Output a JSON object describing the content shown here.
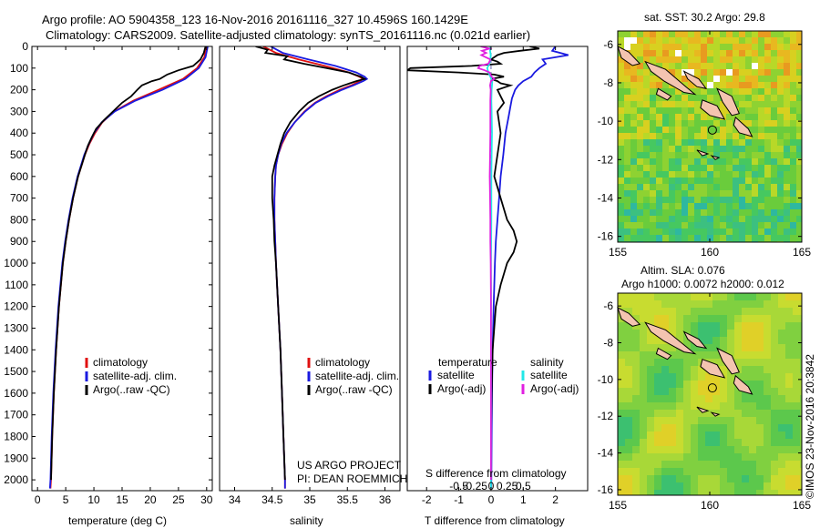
{
  "header": {
    "line1": "Argo profile: AO 5904358_123 16-Nov-2016 20161116_327 10.4596S 160.1429E",
    "line2": "Climatology: CARS2009. Satellite-adjusted climatology: synTS_20161116.nc (0.021d earlier)"
  },
  "credits": {
    "project": "US ARGO PROJECT",
    "pi": "PI: DEAN ROEMMICH",
    "imos": "©IMOS 23-Nov-2016 20:3842"
  },
  "colors": {
    "climatology": "#e01010",
    "satellite": "#1a1ae0",
    "argo": "#000000",
    "salinity_satellite": "#22e8e8",
    "salinity_argo": "#e020e0",
    "land": "#f4c4b0",
    "zero_line": "#8080c0"
  },
  "chart_data": [
    {
      "type": "line",
      "id": "temperature",
      "xlabel": "temperature (deg C)",
      "ylabel": "",
      "xlim": [
        -1,
        31
      ],
      "ylim": [
        2050,
        0
      ],
      "xticks": [
        0,
        5,
        10,
        15,
        20,
        25,
        30
      ],
      "yticks": [
        0,
        100,
        200,
        300,
        400,
        500,
        600,
        700,
        800,
        900,
        1000,
        1100,
        1200,
        1300,
        1400,
        1500,
        1600,
        1700,
        1800,
        1900,
        2000
      ],
      "legend": [
        "climatology",
        "satellite-adj. clim.",
        "Argo(..raw -QC)"
      ],
      "series": [
        {
          "name": "climatology",
          "color_key": "climatology",
          "depth": [
            0,
            50,
            100,
            150,
            200,
            250,
            300,
            350,
            400,
            450,
            500,
            600,
            700,
            800,
            900,
            1000,
            1200,
            1400,
            1600,
            1800,
            2000,
            2040
          ],
          "values": [
            29.9,
            29.6,
            28.3,
            25.8,
            21.5,
            17.0,
            13.6,
            11.5,
            10.2,
            9.2,
            8.4,
            7.2,
            6.3,
            5.6,
            5.0,
            4.5,
            3.8,
            3.3,
            2.9,
            2.6,
            2.4,
            2.3
          ]
        },
        {
          "name": "satellite-adj. clim.",
          "color_key": "satellite",
          "depth": [
            0,
            50,
            100,
            150,
            200,
            250,
            300,
            350,
            400,
            450,
            500,
            600,
            700,
            800,
            900,
            1000,
            1200,
            1400,
            1600,
            1800,
            2000,
            2040
          ],
          "values": [
            30.2,
            29.8,
            28.6,
            26.2,
            22.2,
            17.4,
            13.7,
            11.4,
            10.0,
            9.1,
            8.3,
            7.1,
            6.2,
            5.5,
            4.9,
            4.4,
            3.7,
            3.2,
            2.8,
            2.5,
            2.3,
            2.2
          ]
        },
        {
          "name": "Argo(..raw -QC)",
          "color_key": "argo",
          "depth": [
            0,
            30,
            60,
            90,
            110,
            130,
            150,
            160,
            180,
            200,
            230,
            260,
            300,
            340,
            380,
            420,
            460,
            500,
            550,
            600,
            700,
            800,
            900,
            1000,
            1200,
            1400,
            1600,
            1800,
            2000
          ],
          "values": [
            29.8,
            29.5,
            28.9,
            27.6,
            25.0,
            23.0,
            21.7,
            20.3,
            18.5,
            17.7,
            16.6,
            15.0,
            13.4,
            11.8,
            10.4,
            9.6,
            8.9,
            8.4,
            7.8,
            7.2,
            6.3,
            5.6,
            5.0,
            4.5,
            3.8,
            3.3,
            2.9,
            2.6,
            2.4
          ]
        }
      ]
    },
    {
      "type": "line",
      "id": "salinity",
      "xlabel": "salinity",
      "xlim": [
        33.8,
        36.2
      ],
      "ylim": [
        2050,
        0
      ],
      "xticks": [
        34,
        34.5,
        35,
        35.5,
        36
      ],
      "legend": [
        "climatology",
        "satellite-adj. clim.",
        "Argo(..raw -QC)"
      ],
      "series": [
        {
          "name": "climatology",
          "color_key": "climatology",
          "depth": [
            0,
            30,
            60,
            90,
            120,
            140,
            150,
            160,
            180,
            200,
            230,
            260,
            300,
            350,
            400,
            450,
            500,
            550,
            600,
            700,
            800,
            900,
            1000,
            1200,
            1400,
            1600,
            1800,
            2000,
            2040
          ],
          "values": [
            34.38,
            34.55,
            34.85,
            35.2,
            35.52,
            35.66,
            35.7,
            35.67,
            35.55,
            35.4,
            35.22,
            35.07,
            34.93,
            34.8,
            34.7,
            34.63,
            34.58,
            34.55,
            34.54,
            34.53,
            34.53,
            34.54,
            34.55,
            34.58,
            34.61,
            34.63,
            34.65,
            34.67,
            34.67
          ]
        },
        {
          "name": "satellite-adj. clim.",
          "color_key": "satellite",
          "depth": [
            0,
            30,
            60,
            90,
            120,
            140,
            150,
            160,
            180,
            200,
            230,
            260,
            300,
            350,
            400,
            450,
            500,
            550,
            600,
            700,
            800,
            900,
            1000,
            1200,
            1400,
            1600,
            1800,
            2000,
            2040
          ],
          "values": [
            34.48,
            34.64,
            34.98,
            35.34,
            35.62,
            35.73,
            35.76,
            35.71,
            35.58,
            35.43,
            35.24,
            35.08,
            34.94,
            34.8,
            34.69,
            34.62,
            34.58,
            34.55,
            34.54,
            34.53,
            34.53,
            34.54,
            34.55,
            34.58,
            34.61,
            34.63,
            34.65,
            34.67,
            34.67
          ]
        },
        {
          "name": "Argo(..raw -QC)",
          "color_key": "argo",
          "depth": [
            0,
            15,
            30,
            45,
            60,
            80,
            100,
            120,
            140,
            150,
            160,
            180,
            200,
            230,
            260,
            300,
            350,
            400,
            450,
            500,
            550,
            600,
            700,
            800,
            900,
            1000,
            1200,
            1400,
            1600,
            1800,
            2000
          ],
          "values": [
            34.28,
            34.44,
            34.41,
            34.7,
            34.66,
            34.92,
            35.22,
            35.52,
            35.68,
            35.73,
            35.62,
            35.45,
            35.3,
            35.12,
            34.98,
            34.86,
            34.74,
            34.66,
            34.61,
            34.57,
            34.53,
            34.5,
            34.5,
            34.52,
            34.53,
            34.55,
            34.58,
            34.61,
            34.63,
            34.65,
            34.67
          ]
        }
      ]
    },
    {
      "type": "line",
      "id": "differences",
      "xlabel": "T difference from climatology",
      "xlabel_top": "S difference from climatology",
      "xlim": [
        -2.6,
        3.0
      ],
      "ylim": [
        2050,
        0
      ],
      "xticks": [
        -2,
        -1,
        0,
        1,
        2
      ],
      "s_ticks": [
        -0.5,
        -0.25,
        0,
        0.25,
        0.5
      ],
      "s_ticks_labels": [
        "-0.5",
        "-0.25",
        "0",
        "0.25",
        "0.5"
      ],
      "legend_temperature_title": "temperature",
      "legend_salinity_title": "salinity",
      "legend_temperature": [
        "satellite",
        "Argo(-adj)"
      ],
      "legend_salinity": [
        "satellite",
        "Argo(-adj)"
      ],
      "series": [
        {
          "name": "temperature satellite",
          "color_key": "satellite",
          "depth": [
            0,
            20,
            40,
            60,
            80,
            100,
            120,
            140,
            160,
            180,
            200,
            240,
            280,
            320,
            400,
            500,
            600,
            700,
            800,
            900,
            1000,
            1200,
            1400,
            1600,
            1800,
            2000,
            2040
          ],
          "values": [
            2.0,
            1.9,
            2.4,
            1.6,
            1.7,
            1.5,
            1.35,
            1.25,
            1.0,
            0.85,
            0.75,
            0.65,
            0.6,
            0.55,
            0.45,
            0.38,
            0.3,
            0.25,
            0.2,
            0.15,
            0.12,
            0.08,
            0.05,
            0.03,
            0.02,
            0.01,
            0.0
          ]
        },
        {
          "name": "temperature Argo(-adj)",
          "color_key": "argo",
          "depth": [
            0,
            10,
            20,
            30,
            40,
            60,
            70,
            80,
            90,
            100,
            110,
            120,
            130,
            140,
            150,
            160,
            170,
            180,
            190,
            200,
            230,
            260,
            300,
            400,
            500,
            600,
            700,
            800,
            850,
            900,
            950,
            1000,
            1100,
            1200,
            1400,
            1600,
            1800,
            2000
          ],
          "values": [
            1.2,
            1.5,
            0.9,
            0.4,
            0.2,
            0.0,
            0.2,
            0.3,
            -0.6,
            -2.5,
            -2.6,
            -1.0,
            0.1,
            0.4,
            0.0,
            0.2,
            0.3,
            0.6,
            0.4,
            0.2,
            0.3,
            0.4,
            0.2,
            0.3,
            0.2,
            0.1,
            0.3,
            0.5,
            0.7,
            0.8,
            0.7,
            0.5,
            0.3,
            0.15,
            0.05,
            0.02,
            0.0,
            0.0
          ]
        },
        {
          "name": "salinity satellite",
          "color_key": "salinity_satellite",
          "depth": [
            0,
            20,
            40,
            60,
            80,
            100,
            120,
            140,
            160,
            180,
            200,
            250,
            300,
            400,
            500,
            600,
            800,
            1000,
            1200,
            1400,
            1600,
            1800,
            2000,
            2040
          ],
          "values": [
            -0.02,
            -0.03,
            -0.01,
            -0.02,
            -0.05,
            -0.12,
            -0.08,
            -0.02,
            0.04,
            0.03,
            0.02,
            0.01,
            0.02,
            0.03,
            0.02,
            0.01,
            0.01,
            0.0,
            0.0,
            0.0,
            0.0,
            0.0,
            0.0,
            0.0
          ]
        },
        {
          "name": "salinity Argo(-adj)",
          "color_key": "salinity_argo",
          "depth": [
            0,
            10,
            20,
            30,
            40,
            60,
            70,
            80,
            90,
            100,
            110,
            120,
            140,
            150,
            160,
            180,
            200,
            250,
            300,
            400,
            500,
            600,
            700,
            800,
            900,
            1000,
            1200,
            1400,
            1600,
            1800,
            2000
          ],
          "values": [
            -0.32,
            -0.05,
            -0.28,
            -0.15,
            -0.3,
            -0.02,
            -0.05,
            -0.08,
            -0.35,
            -0.4,
            -0.2,
            -0.05,
            0.02,
            0.1,
            0.0,
            -0.03,
            -0.01,
            -0.02,
            -0.02,
            -0.02,
            -0.03,
            -0.04,
            -0.03,
            -0.02,
            -0.02,
            -0.01,
            0.0,
            0.0,
            0.0,
            0.0,
            0.0
          ]
        }
      ]
    },
    {
      "type": "heatmap",
      "id": "sst_map",
      "title": "sat. SST: 30.2  Argo: 29.8",
      "xlim": [
        155,
        165
      ],
      "ylim": [
        -16.3,
        -5.3
      ],
      "xticks": [
        155,
        160,
        165
      ],
      "yticks": [
        -6,
        -8,
        -10,
        -12,
        -14,
        -16
      ],
      "yticklabels": [
        "-6",
        "-8",
        "-10",
        "-12",
        "-14",
        "-16"
      ],
      "float_position": {
        "lon": 160.1429,
        "lat": -10.4596
      }
    },
    {
      "type": "heatmap",
      "id": "sla_map",
      "title_line1": "Altim. SLA: 0.076",
      "title_line2": "Argo h1000: 0.0072 h2000: 0.012",
      "xlim": [
        155,
        165
      ],
      "ylim": [
        -16.3,
        -5.3
      ],
      "xticks": [
        155,
        160,
        165
      ],
      "yticks": [
        -6,
        -8,
        -10,
        -12,
        -14,
        -16
      ],
      "yticklabels": [
        "-6",
        "-8",
        "-10",
        "-12",
        "-14",
        "-16"
      ],
      "float_position": {
        "lon": 160.1429,
        "lat": -10.4596
      }
    }
  ]
}
